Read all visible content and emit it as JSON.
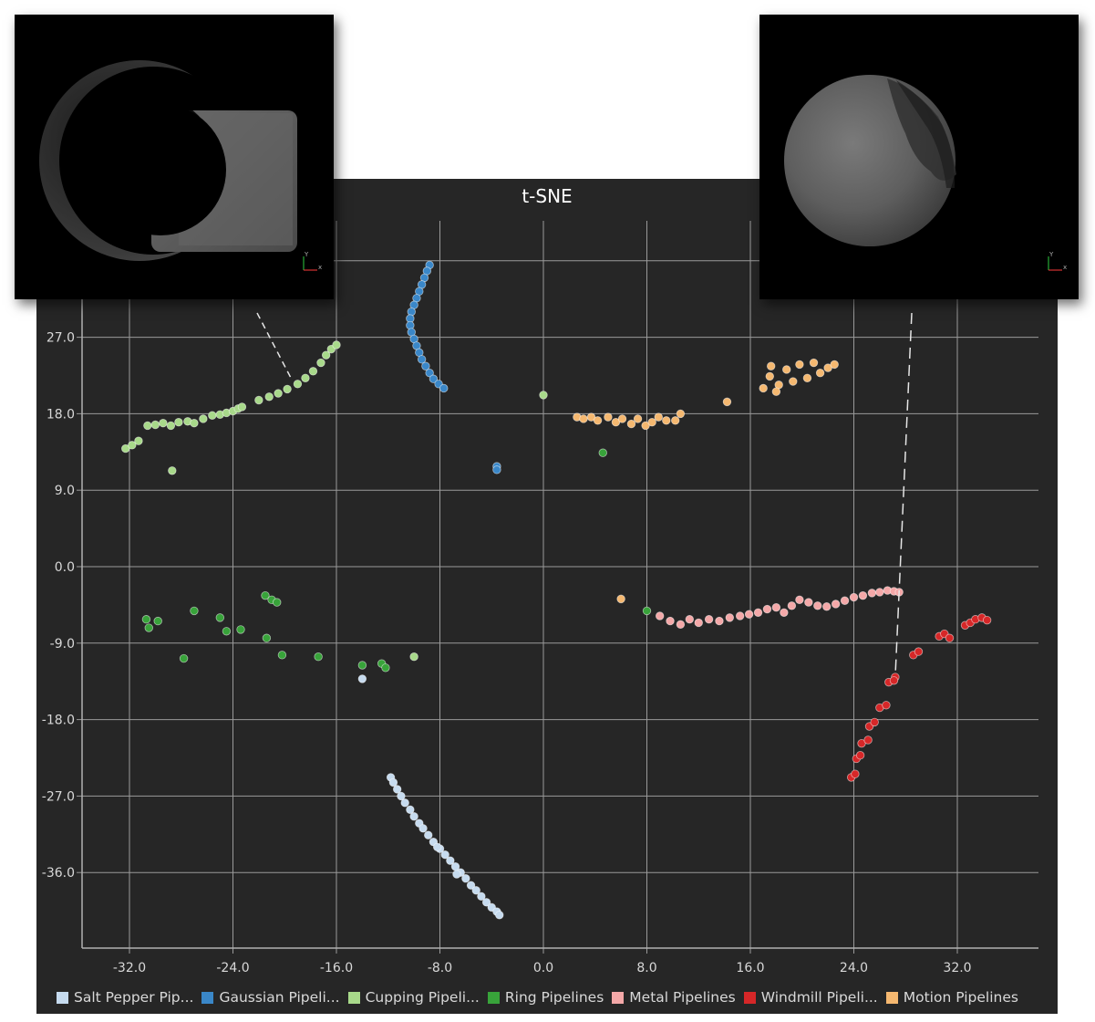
{
  "chart_data": {
    "type": "scatter",
    "title": "t-SNE",
    "xlabel": "",
    "ylabel": "",
    "xlim": [
      -35.5,
      38.5
    ],
    "ylim": [
      -45,
      36
    ],
    "x_ticks": [
      "-32.0",
      "-24.0",
      "-16.0",
      "-8.0",
      "0.0",
      "8.0",
      "16.0",
      "24.0",
      "32.0"
    ],
    "y_ticks": [
      "27.0",
      "18.0",
      "9.0",
      "0.0",
      "-9.0",
      "-18.0",
      "-27.0",
      "-36.0"
    ],
    "grid": true,
    "legend_position": "bottom",
    "series": [
      {
        "name": "Salt Pepper Pip...",
        "color": "#c6dbef",
        "points": [
          [
            -11.8,
            -24.8
          ],
          [
            -11.6,
            -25.4
          ],
          [
            -11.3,
            -26.2
          ],
          [
            -11.0,
            -27.0
          ],
          [
            -10.7,
            -27.8
          ],
          [
            -10.3,
            -28.6
          ],
          [
            -10.0,
            -29.4
          ],
          [
            -9.6,
            -30.2
          ],
          [
            -9.3,
            -30.8
          ],
          [
            -8.9,
            -31.6
          ],
          [
            -8.5,
            -32.4
          ],
          [
            -8.0,
            -33.2
          ],
          [
            -7.6,
            -33.9
          ],
          [
            -7.2,
            -34.6
          ],
          [
            -6.8,
            -35.3
          ],
          [
            -6.4,
            -36.0
          ],
          [
            -6.0,
            -36.7
          ],
          [
            -5.6,
            -37.5
          ],
          [
            -5.2,
            -38.1
          ],
          [
            -4.8,
            -38.8
          ],
          [
            -4.4,
            -39.5
          ],
          [
            -4.0,
            -40.1
          ],
          [
            -3.6,
            -40.6
          ],
          [
            -3.4,
            -41.0
          ],
          [
            -8.2,
            -33.0
          ],
          [
            -6.7,
            -36.2
          ],
          [
            -14.0,
            -13.2
          ]
        ]
      },
      {
        "name": "Gaussian Pipeli...",
        "color": "#3a87c8",
        "points": [
          [
            -8.8,
            35.5
          ],
          [
            -9.0,
            34.8
          ],
          [
            -9.2,
            34.0
          ],
          [
            -9.4,
            33.2
          ],
          [
            -9.6,
            32.4
          ],
          [
            -9.8,
            31.6
          ],
          [
            -10.0,
            30.8
          ],
          [
            -10.2,
            30.0
          ],
          [
            -10.3,
            29.2
          ],
          [
            -10.3,
            28.4
          ],
          [
            -10.2,
            27.6
          ],
          [
            -10.0,
            26.8
          ],
          [
            -9.8,
            26.0
          ],
          [
            -9.6,
            25.2
          ],
          [
            -9.4,
            24.4
          ],
          [
            -9.1,
            23.6
          ],
          [
            -8.8,
            22.8
          ],
          [
            -8.5,
            22.1
          ],
          [
            -8.1,
            21.5
          ],
          [
            -7.7,
            21.0
          ],
          [
            -3.6,
            11.8
          ],
          [
            -3.6,
            11.4
          ]
        ]
      },
      {
        "name": "Cupping Pipeli...",
        "color": "#a8d98a",
        "points": [
          [
            -32.3,
            13.9
          ],
          [
            -31.8,
            14.3
          ],
          [
            -31.3,
            14.8
          ],
          [
            -30.6,
            16.6
          ],
          [
            -30.0,
            16.7
          ],
          [
            -29.4,
            16.9
          ],
          [
            -28.8,
            16.6
          ],
          [
            -28.2,
            17.0
          ],
          [
            -27.5,
            17.1
          ],
          [
            -27.0,
            16.9
          ],
          [
            -26.3,
            17.4
          ],
          [
            -25.6,
            17.8
          ],
          [
            -25.0,
            17.9
          ],
          [
            -24.5,
            18.1
          ],
          [
            -24.0,
            18.3
          ],
          [
            -23.6,
            18.6
          ],
          [
            -23.3,
            18.8
          ],
          [
            -28.7,
            11.3
          ],
          [
            -22.0,
            19.6
          ],
          [
            -21.2,
            20.0
          ],
          [
            -20.5,
            20.4
          ],
          [
            -19.8,
            20.9
          ],
          [
            -19.0,
            21.5
          ],
          [
            -18.4,
            22.2
          ],
          [
            -17.8,
            23.0
          ],
          [
            -17.2,
            24.0
          ],
          [
            -16.8,
            24.9
          ],
          [
            -16.4,
            25.6
          ],
          [
            -16.0,
            26.1
          ],
          [
            0.0,
            20.2
          ],
          [
            -10.0,
            -10.6
          ]
        ]
      },
      {
        "name": "Ring Pipelines",
        "color": "#38a33a",
        "points": [
          [
            -30.7,
            -6.2
          ],
          [
            -30.5,
            -7.2
          ],
          [
            -29.8,
            -6.4
          ],
          [
            -27.8,
            -10.8
          ],
          [
            -27.0,
            -5.2
          ],
          [
            -25.0,
            -6.0
          ],
          [
            -24.5,
            -7.6
          ],
          [
            -23.4,
            -7.4
          ],
          [
            -21.5,
            -3.4
          ],
          [
            -21.0,
            -3.9
          ],
          [
            -20.6,
            -4.2
          ],
          [
            -21.4,
            -8.4
          ],
          [
            -20.2,
            -10.4
          ],
          [
            -17.4,
            -10.6
          ],
          [
            -14.0,
            -11.6
          ],
          [
            -12.5,
            -11.4
          ],
          [
            -12.2,
            -11.9
          ],
          [
            4.6,
            13.4
          ],
          [
            8.0,
            -5.2
          ]
        ]
      },
      {
        "name": "Metal Pipelines",
        "color": "#f4a8a8",
        "points": [
          [
            9.0,
            -5.8
          ],
          [
            9.8,
            -6.4
          ],
          [
            10.6,
            -6.8
          ],
          [
            11.3,
            -6.2
          ],
          [
            12.0,
            -6.6
          ],
          [
            12.8,
            -6.2
          ],
          [
            13.6,
            -6.4
          ],
          [
            14.4,
            -6.0
          ],
          [
            15.2,
            -5.8
          ],
          [
            15.9,
            -5.6
          ],
          [
            16.6,
            -5.4
          ],
          [
            17.3,
            -5.0
          ],
          [
            18.0,
            -4.8
          ],
          [
            18.6,
            -5.4
          ],
          [
            19.2,
            -4.6
          ],
          [
            19.8,
            -3.9
          ],
          [
            20.5,
            -4.2
          ],
          [
            21.2,
            -4.6
          ],
          [
            21.9,
            -4.7
          ],
          [
            22.6,
            -4.4
          ],
          [
            23.3,
            -4.0
          ],
          [
            24.0,
            -3.6
          ],
          [
            24.7,
            -3.4
          ],
          [
            25.4,
            -3.1
          ],
          [
            26.0,
            -3.0
          ],
          [
            26.6,
            -2.8
          ],
          [
            27.1,
            -2.9
          ],
          [
            27.5,
            -3.0
          ]
        ]
      },
      {
        "name": "Windmill Pipeli...",
        "color": "#d62728",
        "points": [
          [
            23.8,
            -24.8
          ],
          [
            24.1,
            -24.4
          ],
          [
            24.2,
            -22.6
          ],
          [
            24.5,
            -22.2
          ],
          [
            24.6,
            -20.8
          ],
          [
            25.1,
            -20.4
          ],
          [
            25.2,
            -18.8
          ],
          [
            25.6,
            -18.3
          ],
          [
            26.0,
            -16.6
          ],
          [
            26.5,
            -16.3
          ],
          [
            26.7,
            -13.6
          ],
          [
            27.2,
            -13.0
          ],
          [
            28.6,
            -10.4
          ],
          [
            29.0,
            -10.0
          ],
          [
            30.6,
            -8.2
          ],
          [
            31.0,
            -7.9
          ],
          [
            31.4,
            -8.4
          ],
          [
            32.6,
            -6.9
          ],
          [
            33.0,
            -6.6
          ],
          [
            33.4,
            -6.2
          ],
          [
            33.9,
            -6.0
          ],
          [
            34.3,
            -6.3
          ],
          [
            27.1,
            -13.4
          ]
        ]
      },
      {
        "name": "Motion Pipelines",
        "color": "#f5b870",
        "points": [
          [
            2.6,
            17.6
          ],
          [
            3.1,
            17.4
          ],
          [
            3.7,
            17.6
          ],
          [
            4.2,
            17.2
          ],
          [
            5.0,
            17.6
          ],
          [
            5.6,
            17.0
          ],
          [
            6.1,
            17.4
          ],
          [
            6.8,
            16.8
          ],
          [
            7.3,
            17.4
          ],
          [
            7.9,
            16.6
          ],
          [
            8.4,
            17.0
          ],
          [
            8.9,
            17.6
          ],
          [
            9.5,
            17.2
          ],
          [
            10.2,
            17.2
          ],
          [
            10.6,
            18.0
          ],
          [
            14.2,
            19.4
          ],
          [
            6.0,
            -3.8
          ],
          [
            17.0,
            21.0
          ],
          [
            17.5,
            22.4
          ],
          [
            18.2,
            21.4
          ],
          [
            18.8,
            23.2
          ],
          [
            19.3,
            21.8
          ],
          [
            19.8,
            23.8
          ],
          [
            20.4,
            22.2
          ],
          [
            20.9,
            24.0
          ],
          [
            21.4,
            22.8
          ],
          [
            22.0,
            23.4
          ],
          [
            22.5,
            23.8
          ],
          [
            17.6,
            23.6
          ],
          [
            18.0,
            20.6
          ]
        ]
      }
    ]
  },
  "thumbnails": {
    "left": {
      "icon": "rendered-volume-crescent-and-box-icon",
      "axes_icon": "xyz-axes-icon",
      "axes_labels": [
        "Y",
        "x"
      ]
    },
    "right": {
      "icon": "rendered-volume-sphere-icon",
      "axes_icon": "xyz-axes-icon",
      "axes_labels": [
        "Y",
        "x"
      ]
    }
  },
  "colors": {
    "panel_background": "#262626",
    "grid": "#9a9a9a",
    "axis_text": "#d8d8d8",
    "leader_line": "#e6e6e6"
  }
}
